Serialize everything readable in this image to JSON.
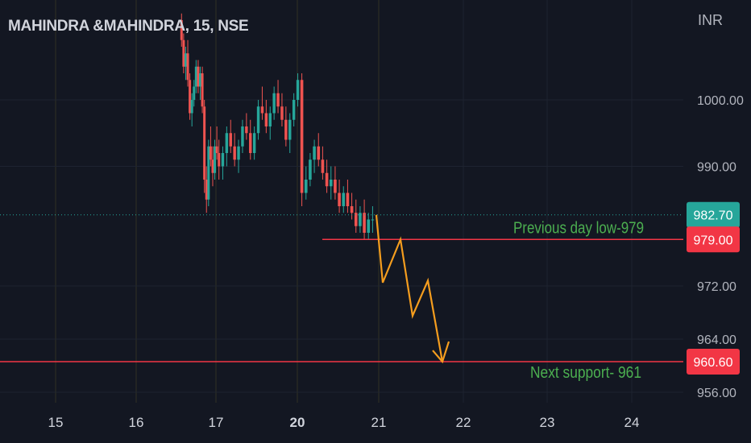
{
  "header": {
    "symbol_title": "MAHINDRA &MAHINDRA, 15, NSE",
    "currency": "INR"
  },
  "colors": {
    "background": "#131722",
    "up": "#26a69a",
    "down": "#ef5350",
    "grid": "#1e2330",
    "support_line": "#f23645",
    "projection": "#f59d1e",
    "annotation_text": "#4caf50",
    "price_tag_current": "#26a69a",
    "price_tag_level": "#f23645"
  },
  "chart_data": {
    "type": "candlestick",
    "ylim": [
      956,
      1014
    ],
    "y_ticks": [
      1000.0,
      990.0,
      972.0,
      964.0,
      956.0
    ],
    "y_tick_labels": [
      "1000.00",
      "990.00",
      "972.00",
      "964.00",
      "956.00"
    ],
    "x_tick_labels": [
      "15",
      "16",
      "17",
      "20",
      "21",
      "22",
      "23",
      "24"
    ],
    "x_tick_bold": [
      false,
      false,
      false,
      true,
      false,
      false,
      false,
      false
    ],
    "current_price": 982.7,
    "current_price_label": "982.70",
    "levels": [
      {
        "value": 979.0,
        "label": "979.00",
        "annotation": "Previous day low-979"
      },
      {
        "value": 960.6,
        "label": "960.60",
        "annotation": "Next support- 961"
      }
    ],
    "series": [
      {
        "session": "17",
        "candles": [
          [
            1012,
            1013,
            1008,
            1009
          ],
          [
            1009,
            1010,
            1004,
            1005
          ],
          [
            1005,
            1008,
            1003,
            1007
          ],
          [
            1007,
            1009,
            1002,
            1003
          ],
          [
            1003,
            1004,
            997,
            998
          ],
          [
            998,
            1001,
            996,
            1000
          ],
          [
            1000,
            1003,
            999,
            1002
          ],
          [
            1002,
            1006,
            1001,
            1005
          ],
          [
            1005,
            1006,
            1001,
            1002
          ],
          [
            1002,
            1005,
            1000,
            1004
          ],
          [
            1004,
            1005,
            998,
            999
          ],
          [
            999,
            1000,
            986,
            988
          ],
          [
            988,
            990,
            983,
            985
          ],
          [
            985,
            994,
            984,
            993
          ],
          [
            993,
            996,
            990,
            991
          ],
          [
            991,
            993,
            987,
            989
          ],
          [
            989,
            994,
            988,
            993
          ],
          [
            993,
            996,
            991,
            992
          ],
          [
            992,
            994,
            988,
            990
          ]
        ]
      },
      {
        "session": "17b",
        "candles": [
          [
            990,
            993,
            988,
            992
          ],
          [
            992,
            996,
            990,
            995
          ],
          [
            995,
            997,
            992,
            993
          ],
          [
            993,
            995,
            990,
            991
          ],
          [
            991,
            994,
            989,
            993
          ],
          [
            993,
            997,
            992,
            996
          ],
          [
            996,
            998,
            994,
            995
          ],
          [
            995,
            997,
            991,
            992
          ],
          [
            992,
            996,
            991,
            995
          ],
          [
            995,
            1000,
            994,
            999
          ],
          [
            999,
            1002,
            997,
            998
          ],
          [
            998,
            1000,
            995,
            996
          ],
          [
            996,
            999,
            994,
            998
          ],
          [
            998,
            1002,
            997,
            1001
          ],
          [
            1001,
            1003,
            998,
            999
          ],
          [
            999,
            1001,
            996,
            997
          ],
          [
            997,
            999,
            993,
            994
          ],
          [
            994,
            998,
            992,
            997
          ],
          [
            997,
            1001,
            996,
            1000
          ],
          [
            1000,
            1004,
            999,
            1003
          ]
        ]
      },
      {
        "session": "20",
        "candles": [
          [
            1003,
            1004,
            984,
            986
          ],
          [
            986,
            990,
            985,
            988
          ],
          [
            988,
            992,
            987,
            991
          ],
          [
            991,
            994,
            989,
            993
          ],
          [
            993,
            995,
            990,
            991
          ],
          [
            991,
            993,
            988,
            989
          ],
          [
            989,
            991,
            986,
            987
          ],
          [
            987,
            990,
            985,
            988
          ],
          [
            988,
            990,
            985,
            986
          ],
          [
            986,
            988,
            983,
            984
          ],
          [
            984,
            987,
            983,
            986
          ],
          [
            986,
            988,
            983,
            984
          ],
          [
            984,
            986,
            982,
            983
          ],
          [
            983,
            985,
            980,
            981
          ],
          [
            981,
            984,
            980,
            983
          ],
          [
            983,
            985,
            979,
            980
          ],
          [
            980,
            983,
            979,
            982
          ],
          [
            982,
            984,
            980,
            982
          ]
        ]
      }
    ],
    "projection_path_prices": [
      982.7,
      972.5,
      979.0,
      967.5,
      972.8,
      960.6
    ]
  }
}
